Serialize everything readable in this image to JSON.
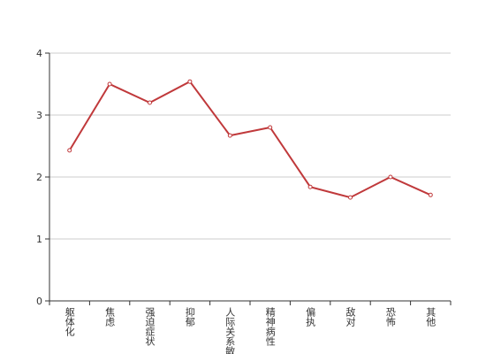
{
  "chart_data": {
    "type": "line",
    "categories": [
      "躯体化",
      "焦虑",
      "强迫症状",
      "抑郁",
      "人际关系敏感",
      "精神病性",
      "偏执",
      "敌对",
      "恐怖",
      "其他"
    ],
    "values": [
      2.43,
      3.5,
      3.2,
      3.54,
      2.67,
      2.8,
      1.84,
      1.67,
      2.0,
      1.71
    ],
    "color": "#c0393b",
    "ylim": [
      0,
      4
    ],
    "yticks": [
      0,
      1,
      2,
      3,
      4
    ],
    "grid": true
  }
}
